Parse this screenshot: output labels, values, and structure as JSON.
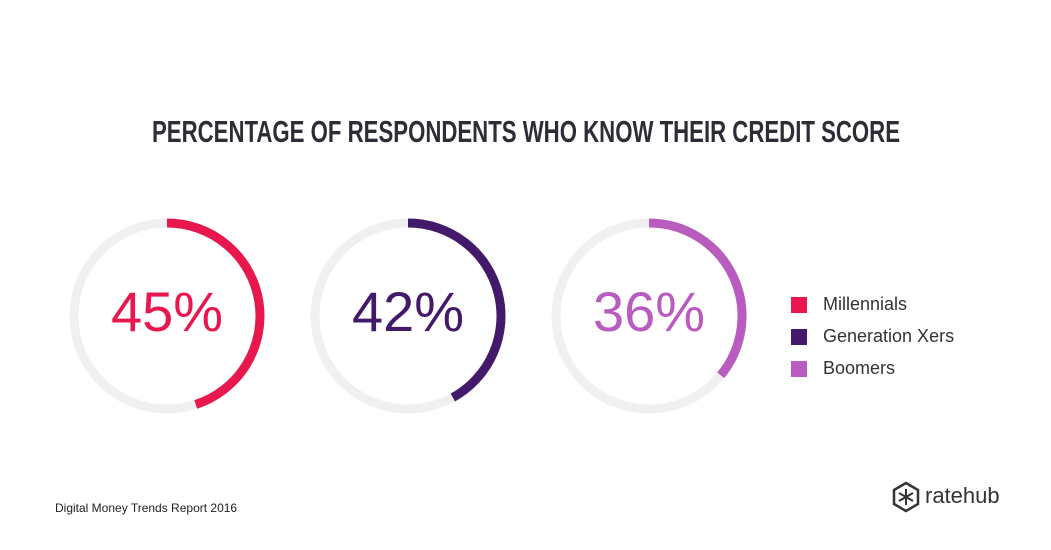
{
  "chart_data": {
    "type": "donut",
    "title": "PERCENTAGE OF RESPONDENTS WHO KNOW THEIR CREDIT SCORE",
    "ylim": [
      0,
      100
    ],
    "series": [
      {
        "name": "Millennials",
        "color": "#e8184f",
        "values": [
          45
        ],
        "value_labels": [
          "45%"
        ]
      },
      {
        "name": "Generation Xers",
        "color": "#43196a",
        "values": [
          42
        ],
        "value_labels": [
          "42%"
        ]
      },
      {
        "name": "Boomers",
        "color": "#b95cbf",
        "values": [
          36
        ],
        "value_labels": [
          "36%"
        ]
      }
    ],
    "track_color": "#f0f0f1",
    "legend": "right"
  },
  "footer": {
    "source": "Digital Money Trends Report 2016",
    "brand": "ratehub"
  }
}
